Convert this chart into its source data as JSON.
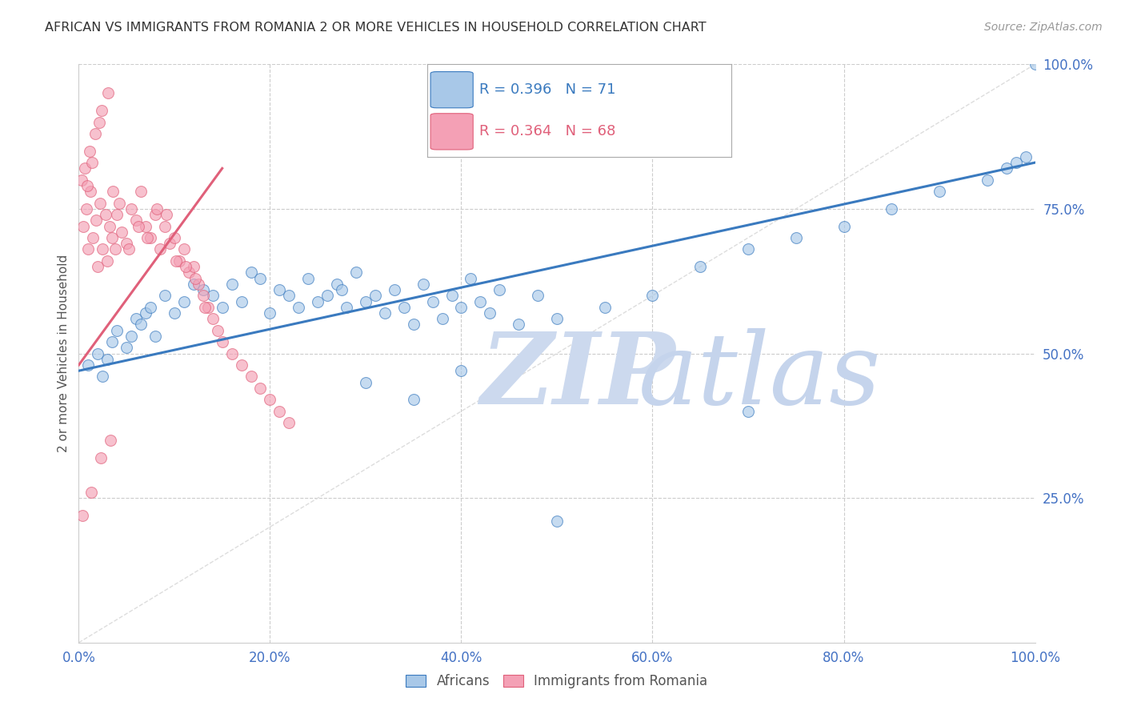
{
  "title": "AFRICAN VS IMMIGRANTS FROM ROMANIA 2 OR MORE VEHICLES IN HOUSEHOLD CORRELATION CHART",
  "source": "Source: ZipAtlas.com",
  "ylabel": "2 or more Vehicles in Household",
  "legend_1_label": "Africans",
  "legend_2_label": "Immigrants from Romania",
  "R1": 0.396,
  "N1": 71,
  "R2": 0.364,
  "N2": 68,
  "color_blue": "#a8c8e8",
  "color_pink": "#f4a0b5",
  "color_blue_line": "#3a7abf",
  "color_pink_line": "#e0607a",
  "color_ref_line": "#cccccc",
  "tick_color": "#4472c4",
  "watermark_color": "#dde8f4",
  "blue_line_x0": 0,
  "blue_line_y0": 47,
  "blue_line_x1": 100,
  "blue_line_y1": 83,
  "pink_line_x0": 0,
  "pink_line_y0": 48,
  "pink_line_x1": 15,
  "pink_line_y1": 82,
  "xlim": [
    0,
    100
  ],
  "ylim": [
    0,
    100
  ],
  "yticks": [
    25,
    50,
    75,
    100
  ],
  "ytick_labels": [
    "25.0%",
    "50.0%",
    "75.0%",
    "100.0%"
  ],
  "xticks": [
    0,
    20,
    40,
    60,
    80,
    100
  ],
  "xtick_labels": [
    "0.0%",
    "20.0%",
    "40.0%",
    "60.0%",
    "80.0%",
    "100.0%"
  ],
  "africans_x": [
    1.0,
    2.0,
    2.5,
    3.0,
    3.5,
    4.0,
    5.0,
    5.5,
    6.0,
    6.5,
    7.0,
    7.5,
    8.0,
    9.0,
    10.0,
    11.0,
    12.0,
    13.0,
    14.0,
    15.0,
    16.0,
    17.0,
    18.0,
    19.0,
    20.0,
    21.0,
    22.0,
    23.0,
    24.0,
    25.0,
    26.0,
    27.0,
    27.5,
    28.0,
    29.0,
    30.0,
    31.0,
    32.0,
    33.0,
    34.0,
    35.0,
    36.0,
    37.0,
    38.0,
    39.0,
    40.0,
    41.0,
    42.0,
    43.0,
    44.0,
    46.0,
    48.0,
    50.0,
    55.0,
    60.0,
    65.0,
    70.0,
    75.0,
    80.0,
    85.0,
    90.0,
    95.0,
    97.0,
    98.0,
    99.0,
    100.0,
    30.0,
    35.0,
    40.0,
    50.0,
    70.0
  ],
  "africans_y": [
    48.0,
    50.0,
    46.0,
    49.0,
    52.0,
    54.0,
    51.0,
    53.0,
    56.0,
    55.0,
    57.0,
    58.0,
    53.0,
    60.0,
    57.0,
    59.0,
    62.0,
    61.0,
    60.0,
    58.0,
    62.0,
    59.0,
    64.0,
    63.0,
    57.0,
    61.0,
    60.0,
    58.0,
    63.0,
    59.0,
    60.0,
    62.0,
    61.0,
    58.0,
    64.0,
    59.0,
    60.0,
    57.0,
    61.0,
    58.0,
    55.0,
    62.0,
    59.0,
    56.0,
    60.0,
    58.0,
    63.0,
    59.0,
    57.0,
    61.0,
    55.0,
    60.0,
    56.0,
    58.0,
    60.0,
    65.0,
    68.0,
    70.0,
    72.0,
    75.0,
    78.0,
    80.0,
    82.0,
    83.0,
    84.0,
    100.0,
    45.0,
    42.0,
    47.0,
    21.0,
    40.0
  ],
  "romania_x": [
    0.5,
    0.8,
    1.0,
    1.2,
    1.5,
    1.8,
    2.0,
    2.2,
    2.5,
    2.8,
    3.0,
    3.2,
    3.5,
    3.8,
    4.0,
    4.5,
    5.0,
    5.5,
    6.0,
    6.5,
    7.0,
    7.5,
    8.0,
    8.5,
    9.0,
    9.5,
    10.0,
    10.5,
    11.0,
    11.5,
    12.0,
    12.5,
    13.0,
    13.5,
    14.0,
    14.5,
    15.0,
    16.0,
    17.0,
    18.0,
    19.0,
    20.0,
    21.0,
    22.0,
    0.3,
    0.6,
    0.9,
    1.1,
    1.4,
    1.7,
    2.1,
    2.4,
    3.1,
    3.6,
    4.2,
    5.2,
    6.2,
    7.2,
    8.2,
    9.2,
    10.2,
    11.2,
    12.2,
    13.2,
    0.4,
    1.3,
    2.3,
    3.3
  ],
  "romania_y": [
    72.0,
    75.0,
    68.0,
    78.0,
    70.0,
    73.0,
    65.0,
    76.0,
    68.0,
    74.0,
    66.0,
    72.0,
    70.0,
    68.0,
    74.0,
    71.0,
    69.0,
    75.0,
    73.0,
    78.0,
    72.0,
    70.0,
    74.0,
    68.0,
    72.0,
    69.0,
    70.0,
    66.0,
    68.0,
    64.0,
    65.0,
    62.0,
    60.0,
    58.0,
    56.0,
    54.0,
    52.0,
    50.0,
    48.0,
    46.0,
    44.0,
    42.0,
    40.0,
    38.0,
    80.0,
    82.0,
    79.0,
    85.0,
    83.0,
    88.0,
    90.0,
    92.0,
    95.0,
    78.0,
    76.0,
    68.0,
    72.0,
    70.0,
    75.0,
    74.0,
    66.0,
    65.0,
    63.0,
    58.0,
    22.0,
    26.0,
    32.0,
    35.0
  ]
}
